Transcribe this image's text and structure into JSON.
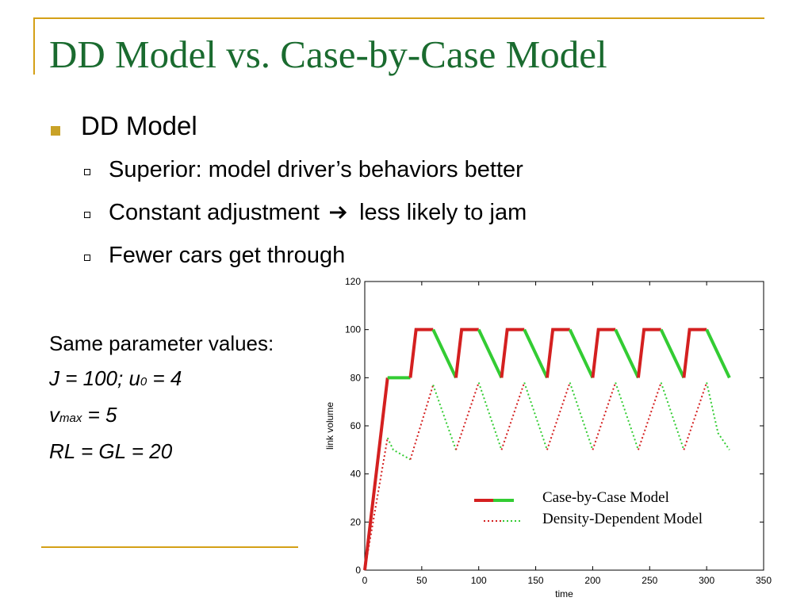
{
  "title": "DD Model vs. Case-by-Case Model",
  "bullet_main": "DD Model",
  "sub_bullets": [
    "Superior: model driver’s behaviors better",
    "Constant adjustment",
    "less likely to jam",
    "Fewer cars get through"
  ],
  "params": {
    "heading": "Same parameter values:",
    "line1_a": "J = 100; u",
    "line1_sub": "0",
    "line1_b": " = 4",
    "line2_a": "v",
    "line2_sub": "max",
    "line2_b": " = 5",
    "line3": "RL = GL = 20"
  },
  "colors": {
    "title": "#1a6b2f",
    "accent": "#d4a017",
    "red": "#d42020",
    "green": "#33cc33"
  },
  "chart_data": {
    "type": "line",
    "xlabel": "time",
    "ylabel": "link volume",
    "xlim": [
      0,
      350
    ],
    "ylim": [
      0,
      120
    ],
    "x_ticks": [
      0,
      50,
      100,
      150,
      200,
      250,
      300,
      350
    ],
    "y_ticks": [
      0,
      20,
      40,
      60,
      80,
      100,
      120
    ],
    "legend_position": "lower-right",
    "series": [
      {
        "name": "Case-by-Case Model",
        "style": "solid",
        "segments": [
          {
            "color": "red",
            "x": [
              0,
              20
            ],
            "y": [
              0,
              80
            ]
          },
          {
            "color": "green",
            "x": [
              20,
              40
            ],
            "y": [
              80,
              80
            ]
          },
          {
            "color": "red",
            "x": [
              40,
              45,
              60
            ],
            "y": [
              80,
              100,
              100
            ]
          },
          {
            "color": "green",
            "x": [
              60,
              80
            ],
            "y": [
              100,
              80
            ]
          },
          {
            "color": "red",
            "x": [
              80,
              85,
              100
            ],
            "y": [
              80,
              100,
              100
            ]
          },
          {
            "color": "green",
            "x": [
              100,
              120
            ],
            "y": [
              100,
              80
            ]
          },
          {
            "color": "red",
            "x": [
              120,
              125,
              140
            ],
            "y": [
              80,
              100,
              100
            ]
          },
          {
            "color": "green",
            "x": [
              140,
              160
            ],
            "y": [
              100,
              80
            ]
          },
          {
            "color": "red",
            "x": [
              160,
              165,
              180
            ],
            "y": [
              80,
              100,
              100
            ]
          },
          {
            "color": "green",
            "x": [
              180,
              200
            ],
            "y": [
              100,
              80
            ]
          },
          {
            "color": "red",
            "x": [
              200,
              205,
              220
            ],
            "y": [
              80,
              100,
              100
            ]
          },
          {
            "color": "green",
            "x": [
              220,
              240
            ],
            "y": [
              100,
              80
            ]
          },
          {
            "color": "red",
            "x": [
              240,
              245,
              260
            ],
            "y": [
              80,
              100,
              100
            ]
          },
          {
            "color": "green",
            "x": [
              260,
              280
            ],
            "y": [
              100,
              80
            ]
          },
          {
            "color": "red",
            "x": [
              280,
              285,
              300
            ],
            "y": [
              80,
              100,
              100
            ]
          },
          {
            "color": "green",
            "x": [
              300,
              320
            ],
            "y": [
              100,
              80
            ]
          }
        ]
      },
      {
        "name": "Density-Dependent Model",
        "style": "dotted",
        "segments": [
          {
            "color": "red",
            "x": [
              0,
              20
            ],
            "y": [
              0,
              55
            ]
          },
          {
            "color": "green",
            "x": [
              20,
              25,
              40
            ],
            "y": [
              55,
              50,
              46
            ]
          },
          {
            "color": "red",
            "x": [
              40,
              60
            ],
            "y": [
              46,
              77
            ]
          },
          {
            "color": "green",
            "x": [
              60,
              80
            ],
            "y": [
              77,
              50
            ]
          },
          {
            "color": "red",
            "x": [
              80,
              100
            ],
            "y": [
              50,
              78
            ]
          },
          {
            "color": "green",
            "x": [
              100,
              120
            ],
            "y": [
              78,
              50
            ]
          },
          {
            "color": "red",
            "x": [
              120,
              140
            ],
            "y": [
              50,
              78
            ]
          },
          {
            "color": "green",
            "x": [
              140,
              160
            ],
            "y": [
              78,
              50
            ]
          },
          {
            "color": "red",
            "x": [
              160,
              180
            ],
            "y": [
              50,
              78
            ]
          },
          {
            "color": "green",
            "x": [
              180,
              200
            ],
            "y": [
              78,
              50
            ]
          },
          {
            "color": "red",
            "x": [
              200,
              220
            ],
            "y": [
              50,
              78
            ]
          },
          {
            "color": "green",
            "x": [
              220,
              240
            ],
            "y": [
              78,
              50
            ]
          },
          {
            "color": "red",
            "x": [
              240,
              260
            ],
            "y": [
              50,
              78
            ]
          },
          {
            "color": "green",
            "x": [
              260,
              280
            ],
            "y": [
              78,
              50
            ]
          },
          {
            "color": "red",
            "x": [
              280,
              300
            ],
            "y": [
              50,
              78
            ]
          },
          {
            "color": "green",
            "x": [
              300,
              310,
              320
            ],
            "y": [
              78,
              57,
              50
            ]
          }
        ]
      }
    ]
  }
}
